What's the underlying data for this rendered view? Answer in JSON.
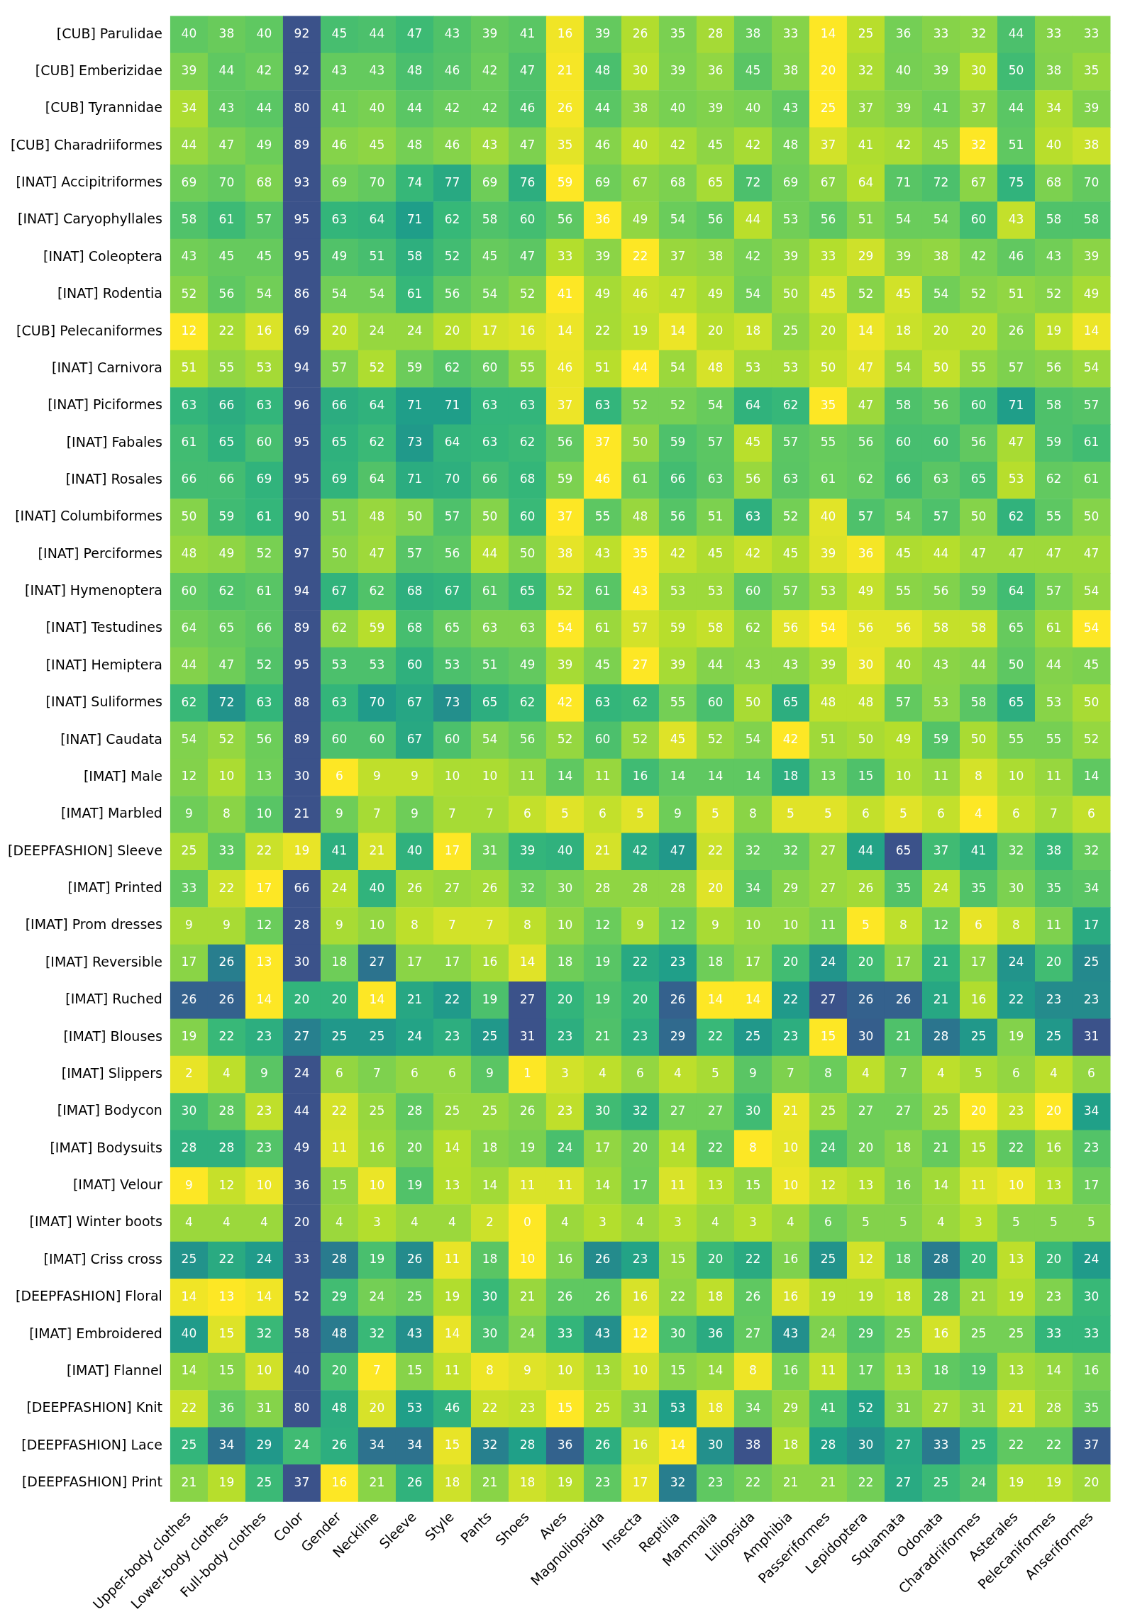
{
  "chart_data": {
    "type": "heatmap",
    "data_labels": true,
    "categories": [
      "Upper-body clothes",
      "Lower-body clothes",
      "Full-body clothes",
      "Color",
      "Gender",
      "Neckline",
      "Sleeve",
      "Style",
      "Pants",
      "Shoes",
      "Aves",
      "Magnoliopsida",
      "Insecta",
      "Reptilia",
      "Mammalia",
      "Liliopsida",
      "Amphibia",
      "Passeriformes",
      "Lepidoptera",
      "Squamata",
      "Odonata",
      "Charadriiformes",
      "Asterales",
      "Pelecaniformes",
      "Anseriformes"
    ],
    "y_categories": [
      "[CUB] Parulidae",
      "[CUB] Emberizidae",
      "[CUB] Tyrannidae",
      "[CUB] Charadriiformes",
      "[INAT] Accipitriformes",
      "[INAT] Caryophyllales",
      "[INAT] Coleoptera",
      "[INAT] Rodentia",
      "[CUB] Pelecaniformes",
      "[INAT] Carnivora",
      "[INAT] Piciformes",
      "[INAT] Fabales",
      "[INAT] Rosales",
      "[INAT] Columbiformes",
      "[INAT] Perciformes",
      "[INAT] Hymenoptera",
      "[INAT] Testudines",
      "[INAT] Hemiptera",
      "[INAT] Suliformes",
      "[INAT] Caudata",
      "[IMAT] Male",
      "[IMAT] Marbled",
      "[DEEPFASHION] Sleeve",
      "[IMAT] Printed",
      "[IMAT] Prom dresses",
      "[IMAT] Reversible",
      "[IMAT] Ruched",
      "[IMAT] Blouses",
      "[IMAT] Slippers",
      "[IMAT] Bodycon",
      "[IMAT] Bodysuits",
      "[IMAT] Velour",
      "[IMAT] Winter boots",
      "[IMAT] Criss cross",
      "[DEEPFASHION] Floral",
      "[IMAT] Embroidered",
      "[IMAT] Flannel",
      "[DEEPFASHION] Knit",
      "[DEEPFASHION] Lace",
      "[DEEPFASHION] Print"
    ],
    "cells": [
      [
        40,
        38,
        40,
        92,
        45,
        44,
        47,
        43,
        39,
        41,
        16,
        39,
        26,
        35,
        28,
        38,
        33,
        14,
        25,
        36,
        33,
        32,
        44,
        33,
        33
      ],
      [
        39,
        44,
        42,
        92,
        43,
        43,
        48,
        46,
        42,
        47,
        21,
        48,
        30,
        39,
        36,
        45,
        38,
        20,
        32,
        40,
        39,
        30,
        50,
        38,
        35
      ],
      [
        34,
        43,
        44,
        80,
        41,
        40,
        44,
        42,
        42,
        46,
        26,
        44,
        38,
        40,
        39,
        40,
        43,
        25,
        37,
        39,
        41,
        37,
        44,
        34,
        39
      ],
      [
        44,
        47,
        49,
        89,
        46,
        45,
        48,
        46,
        43,
        47,
        35,
        46,
        40,
        42,
        45,
        42,
        48,
        37,
        41,
        42,
        45,
        32,
        51,
        40,
        38
      ],
      [
        69,
        70,
        68,
        93,
        69,
        70,
        74,
        77,
        69,
        76,
        59,
        69,
        67,
        68,
        65,
        72,
        69,
        67,
        64,
        71,
        72,
        67,
        75,
        68,
        70
      ],
      [
        58,
        61,
        57,
        95,
        63,
        64,
        71,
        62,
        58,
        60,
        56,
        36,
        49,
        54,
        56,
        44,
        53,
        56,
        51,
        54,
        54,
        60,
        43,
        58,
        58
      ],
      [
        43,
        45,
        45,
        95,
        49,
        51,
        58,
        52,
        45,
        47,
        33,
        39,
        22,
        37,
        38,
        42,
        39,
        33,
        29,
        39,
        38,
        42,
        46,
        43,
        39
      ],
      [
        52,
        56,
        54,
        86,
        54,
        54,
        61,
        56,
        54,
        52,
        41,
        49,
        46,
        47,
        49,
        54,
        50,
        45,
        52,
        45,
        54,
        52,
        51,
        52,
        49
      ],
      [
        12,
        22,
        16,
        69,
        20,
        24,
        24,
        20,
        17,
        16,
        14,
        22,
        19,
        14,
        20,
        18,
        25,
        20,
        14,
        18,
        20,
        20,
        26,
        19,
        14
      ],
      [
        51,
        55,
        53,
        94,
        57,
        52,
        59,
        62,
        60,
        55,
        46,
        51,
        44,
        54,
        48,
        53,
        53,
        50,
        47,
        54,
        50,
        55,
        57,
        56,
        54
      ],
      [
        63,
        66,
        63,
        96,
        66,
        64,
        71,
        71,
        63,
        63,
        37,
        63,
        52,
        52,
        54,
        64,
        62,
        35,
        47,
        58,
        56,
        60,
        71,
        58,
        57
      ],
      [
        61,
        65,
        60,
        95,
        65,
        62,
        73,
        64,
        63,
        62,
        56,
        37,
        50,
        59,
        57,
        45,
        57,
        55,
        56,
        60,
        60,
        56,
        47,
        59,
        61
      ],
      [
        66,
        66,
        69,
        95,
        69,
        64,
        71,
        70,
        66,
        68,
        59,
        46,
        61,
        66,
        63,
        56,
        63,
        61,
        62,
        66,
        63,
        65,
        53,
        62,
        61
      ],
      [
        50,
        59,
        61,
        90,
        51,
        48,
        50,
        57,
        50,
        60,
        37,
        55,
        48,
        56,
        51,
        63,
        52,
        40,
        57,
        54,
        57,
        50,
        62,
        55,
        50
      ],
      [
        48,
        49,
        52,
        97,
        50,
        47,
        57,
        56,
        44,
        50,
        38,
        43,
        35,
        42,
        45,
        42,
        45,
        39,
        36,
        45,
        44,
        47,
        47,
        47,
        47
      ],
      [
        60,
        62,
        61,
        94,
        67,
        62,
        68,
        67,
        61,
        65,
        52,
        61,
        43,
        53,
        53,
        60,
        57,
        53,
        49,
        55,
        56,
        59,
        64,
        57,
        54
      ],
      [
        64,
        65,
        66,
        89,
        62,
        59,
        68,
        65,
        63,
        63,
        54,
        61,
        57,
        59,
        58,
        62,
        56,
        54,
        56,
        56,
        58,
        58,
        65,
        61,
        54
      ],
      [
        44,
        47,
        52,
        95,
        53,
        53,
        60,
        53,
        51,
        49,
        39,
        45,
        27,
        39,
        44,
        43,
        43,
        39,
        30,
        40,
        43,
        44,
        50,
        44,
        45
      ],
      [
        62,
        72,
        63,
        88,
        63,
        70,
        67,
        73,
        65,
        62,
        42,
        63,
        62,
        55,
        60,
        50,
        65,
        48,
        48,
        57,
        53,
        58,
        65,
        53,
        50
      ],
      [
        54,
        52,
        56,
        89,
        60,
        60,
        67,
        60,
        54,
        56,
        52,
        60,
        52,
        45,
        52,
        54,
        42,
        51,
        50,
        49,
        59,
        50,
        55,
        55,
        52
      ],
      [
        12,
        10,
        13,
        30,
        6,
        9,
        9,
        10,
        10,
        11,
        14,
        11,
        16,
        14,
        14,
        14,
        18,
        13,
        15,
        10,
        11,
        8,
        10,
        11,
        14
      ],
      [
        9,
        8,
        10,
        21,
        9,
        7,
        9,
        7,
        7,
        6,
        5,
        6,
        5,
        9,
        5,
        8,
        5,
        5,
        6,
        5,
        6,
        4,
        6,
        7,
        6
      ],
      [
        25,
        33,
        22,
        19,
        41,
        21,
        40,
        17,
        31,
        39,
        40,
        21,
        42,
        47,
        22,
        32,
        32,
        27,
        44,
        65,
        37,
        41,
        32,
        38,
        32
      ],
      [
        33,
        22,
        17,
        66,
        24,
        40,
        26,
        27,
        26,
        32,
        30,
        28,
        28,
        28,
        20,
        34,
        29,
        27,
        26,
        35,
        24,
        35,
        30,
        35,
        34
      ],
      [
        9,
        9,
        12,
        28,
        9,
        10,
        8,
        7,
        7,
        8,
        10,
        12,
        9,
        12,
        9,
        10,
        10,
        11,
        5,
        8,
        12,
        6,
        8,
        11,
        17
      ],
      [
        17,
        26,
        13,
        30,
        18,
        27,
        17,
        17,
        16,
        14,
        18,
        19,
        22,
        23,
        18,
        17,
        20,
        24,
        20,
        17,
        21,
        17,
        24,
        20,
        25
      ],
      [
        26,
        26,
        14,
        20,
        20,
        14,
        21,
        22,
        19,
        27,
        20,
        19,
        20,
        26,
        14,
        14,
        22,
        27,
        26,
        26,
        21,
        16,
        22,
        23,
        23
      ],
      [
        19,
        22,
        23,
        27,
        25,
        25,
        24,
        23,
        25,
        31,
        23,
        21,
        23,
        29,
        22,
        25,
        23,
        15,
        30,
        21,
        28,
        25,
        19,
        25,
        31
      ],
      [
        2,
        4,
        9,
        24,
        6,
        7,
        6,
        6,
        9,
        1,
        3,
        4,
        6,
        4,
        5,
        9,
        7,
        8,
        4,
        7,
        4,
        5,
        6,
        4,
        6
      ],
      [
        30,
        28,
        23,
        44,
        22,
        25,
        28,
        25,
        25,
        26,
        23,
        30,
        32,
        27,
        27,
        30,
        21,
        25,
        27,
        27,
        25,
        20,
        23,
        20,
        34
      ],
      [
        28,
        28,
        23,
        49,
        11,
        16,
        20,
        14,
        18,
        19,
        24,
        17,
        20,
        14,
        22,
        8,
        10,
        24,
        20,
        18,
        21,
        15,
        22,
        16,
        23
      ],
      [
        9,
        12,
        10,
        36,
        15,
        10,
        19,
        13,
        14,
        11,
        11,
        14,
        17,
        11,
        13,
        15,
        10,
        12,
        13,
        16,
        14,
        11,
        10,
        13,
        17
      ],
      [
        4,
        4,
        4,
        20,
        4,
        3,
        4,
        4,
        2,
        0,
        4,
        3,
        4,
        3,
        4,
        3,
        4,
        6,
        5,
        5,
        4,
        3,
        5,
        5,
        5
      ],
      [
        25,
        22,
        24,
        33,
        28,
        19,
        26,
        11,
        18,
        10,
        16,
        26,
        23,
        15,
        20,
        22,
        16,
        25,
        12,
        18,
        28,
        20,
        13,
        20,
        24
      ],
      [
        14,
        13,
        14,
        52,
        29,
        24,
        25,
        19,
        30,
        21,
        26,
        26,
        16,
        22,
        18,
        26,
        16,
        19,
        19,
        18,
        28,
        21,
        19,
        23,
        30
      ],
      [
        40,
        15,
        32,
        58,
        48,
        32,
        43,
        14,
        30,
        24,
        33,
        43,
        12,
        30,
        36,
        27,
        43,
        24,
        29,
        25,
        16,
        25,
        25,
        33,
        33
      ],
      [
        14,
        15,
        10,
        40,
        20,
        7,
        15,
        11,
        8,
        9,
        10,
        13,
        10,
        15,
        14,
        8,
        16,
        11,
        17,
        13,
        18,
        19,
        13,
        14,
        16
      ],
      [
        22,
        36,
        31,
        80,
        48,
        20,
        53,
        46,
        22,
        23,
        15,
        25,
        31,
        53,
        18,
        34,
        29,
        41,
        52,
        31,
        27,
        31,
        21,
        28,
        35
      ],
      [
        25,
        34,
        29,
        24,
        26,
        34,
        34,
        15,
        32,
        28,
        36,
        26,
        16,
        14,
        30,
        38,
        18,
        28,
        30,
        27,
        33,
        25,
        22,
        22,
        37
      ],
      [
        21,
        19,
        25,
        37,
        16,
        21,
        26,
        18,
        21,
        18,
        19,
        23,
        17,
        32,
        23,
        22,
        21,
        21,
        22,
        27,
        25,
        24,
        19,
        19,
        20
      ]
    ]
  }
}
